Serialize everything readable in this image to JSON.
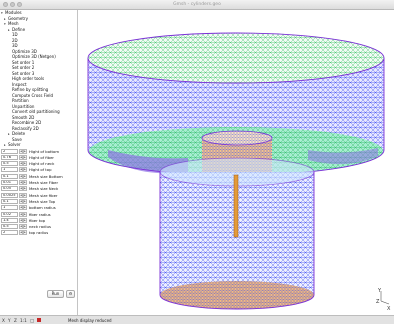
{
  "window": {
    "title": "Gmsh - cylinders.geo"
  },
  "tree": [
    {
      "label": "Modules",
      "arrow": "▾",
      "indent": 1
    },
    {
      "label": "Geometry",
      "arrow": "▸",
      "indent": 4
    },
    {
      "label": "Mesh",
      "arrow": "▾",
      "indent": 4
    },
    {
      "label": "Define",
      "arrow": "▸",
      "indent": 8
    },
    {
      "label": "1D",
      "arrow": "",
      "indent": 8
    },
    {
      "label": "2D",
      "arrow": "",
      "indent": 8
    },
    {
      "label": "3D",
      "arrow": "",
      "indent": 8
    },
    {
      "label": "Optimize 3D",
      "arrow": "",
      "indent": 8
    },
    {
      "label": "Optimize 3D (Netgen)",
      "arrow": "",
      "indent": 8
    },
    {
      "label": "Set order 1",
      "arrow": "",
      "indent": 8
    },
    {
      "label": "Set order 2",
      "arrow": "",
      "indent": 8
    },
    {
      "label": "Set order 3",
      "arrow": "",
      "indent": 8
    },
    {
      "label": "High order tools",
      "arrow": "",
      "indent": 8
    },
    {
      "label": "Inspect",
      "arrow": "",
      "indent": 8
    },
    {
      "label": "Refine by splitting",
      "arrow": "",
      "indent": 8
    },
    {
      "label": "Compute Cross Field",
      "arrow": "",
      "indent": 8
    },
    {
      "label": "Partition",
      "arrow": "",
      "indent": 8
    },
    {
      "label": "Unpartition",
      "arrow": "",
      "indent": 8
    },
    {
      "label": "Convert old partitioning",
      "arrow": "",
      "indent": 8
    },
    {
      "label": "Smooth 2D",
      "arrow": "",
      "indent": 8
    },
    {
      "label": "Recombine 2D",
      "arrow": "",
      "indent": 8
    },
    {
      "label": "Reclassify 2D",
      "arrow": "",
      "indent": 8
    },
    {
      "label": "Delete",
      "arrow": "▸",
      "indent": 8
    },
    {
      "label": "Save",
      "arrow": "",
      "indent": 8
    },
    {
      "label": "Solver",
      "arrow": "▸",
      "indent": 4
    }
  ],
  "params": [
    {
      "value": "2",
      "label": "Hight of bottom"
    },
    {
      "value": "0.76",
      "label": "Hight of fiber"
    },
    {
      "value": "0.5",
      "label": "Hight of neck"
    },
    {
      "value": "1",
      "label": "Hight of top"
    },
    {
      "value": "0.1",
      "label": "Mesh size Bottom"
    },
    {
      "value": "0.01",
      "label": "Mesh size Fiber"
    },
    {
      "value": "0.05",
      "label": "Mesh size Neck"
    },
    {
      "value": "0.0025",
      "label": "Mesh size fiber"
    },
    {
      "value": "0.1",
      "label": "Mesh size Top"
    },
    {
      "value": "1",
      "label": "bottom radius"
    },
    {
      "value": "0.02",
      "label": "fiber radius"
    },
    {
      "value": "1.4",
      "label": "fiber top"
    },
    {
      "value": "0.5",
      "label": "neck radius"
    },
    {
      "value": "2",
      "label": "top radius"
    }
  ],
  "stepper": {
    "minus": "◂",
    "plus": "▸"
  },
  "buttons": {
    "run": "Run",
    "gear": "⚙"
  },
  "status": {
    "icons": [
      "X",
      "Y",
      "Z",
      "1:1",
      "□"
    ],
    "message": "Mesh display reduced"
  },
  "axes": {
    "y": "Y",
    "z": "Z",
    "x": "X"
  },
  "colors": {
    "mesh_blue": "#2c3ef0",
    "mesh_green": "#2bbf5a",
    "surface_green": "#7de7b8",
    "surface_orange": "#f5b26b",
    "surface_violet": "#8d72e6",
    "edge_purple": "#7a2fd6"
  }
}
